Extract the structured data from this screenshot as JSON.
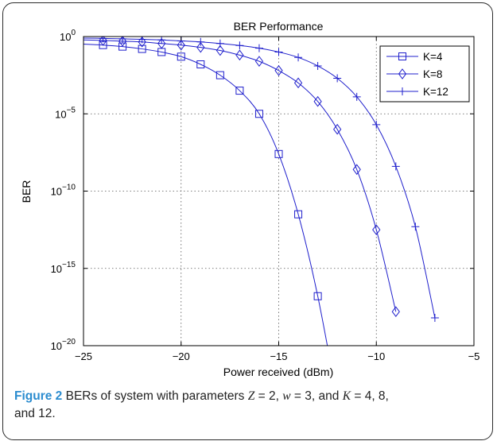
{
  "caption": {
    "figure_label": "Figure 2",
    "text_1": " BERs of system with parameters ",
    "var_z": "Z",
    "eq_z": " = 2, ",
    "var_w": "w",
    "eq_w": " = 3, and ",
    "var_k": "K",
    "eq_k": " = 4, 8,",
    "text_2": "and 12."
  },
  "chart_data": {
    "type": "line",
    "title": "BER Performance",
    "xlabel": "Power received (dBm)",
    "ylabel": "BER",
    "xlim": [
      -25,
      -5
    ],
    "ylim_log10": [
      -20,
      0
    ],
    "y_scale": "log",
    "grid": true,
    "legend_position": "top-right",
    "x_ticks": [
      "−25",
      "−20",
      "−15",
      "−10",
      "−5"
    ],
    "y_ticks": [
      {
        "base": "10",
        "exp": "0"
      },
      {
        "base": "10",
        "exp": "−5"
      },
      {
        "base": "10",
        "exp": "−10"
      },
      {
        "base": "10",
        "exp": "−15"
      },
      {
        "base": "10",
        "exp": "−20"
      }
    ],
    "line_color": "#1f1fcc",
    "series": [
      {
        "name": "K=4",
        "marker": "square",
        "x": [
          -24,
          -23,
          -22,
          -21,
          -20,
          -19,
          -18,
          -17,
          -16,
          -15,
          -14,
          -13,
          -12
        ],
        "log10_y": [
          -0.55,
          -0.65,
          -0.8,
          -1.0,
          -1.3,
          -1.8,
          -2.5,
          -3.5,
          -5.0,
          -7.6,
          -11.5,
          -16.8,
          -23.5
        ]
      },
      {
        "name": "K=8",
        "marker": "diamond",
        "x": [
          -24,
          -23,
          -22,
          -21,
          -20,
          -19,
          -18,
          -17,
          -16,
          -15,
          -14,
          -13,
          -12,
          -11,
          -10,
          -9
        ],
        "log10_y": [
          -0.25,
          -0.3,
          -0.35,
          -0.45,
          -0.55,
          -0.7,
          -0.9,
          -1.2,
          -1.6,
          -2.2,
          -3.0,
          -4.2,
          -6.0,
          -8.6,
          -12.5,
          -17.8
        ]
      },
      {
        "name": "K=12",
        "marker": "plus",
        "x": [
          -24,
          -23,
          -22,
          -21,
          -20,
          -19,
          -18,
          -17,
          -16,
          -15,
          -14,
          -13,
          -12,
          -11,
          -10,
          -9,
          -8,
          -7
        ],
        "log10_y": [
          -0.12,
          -0.15,
          -0.18,
          -0.22,
          -0.28,
          -0.35,
          -0.45,
          -0.58,
          -0.75,
          -1.0,
          -1.35,
          -1.9,
          -2.7,
          -3.9,
          -5.7,
          -8.4,
          -12.3,
          -18.2
        ]
      }
    ]
  }
}
